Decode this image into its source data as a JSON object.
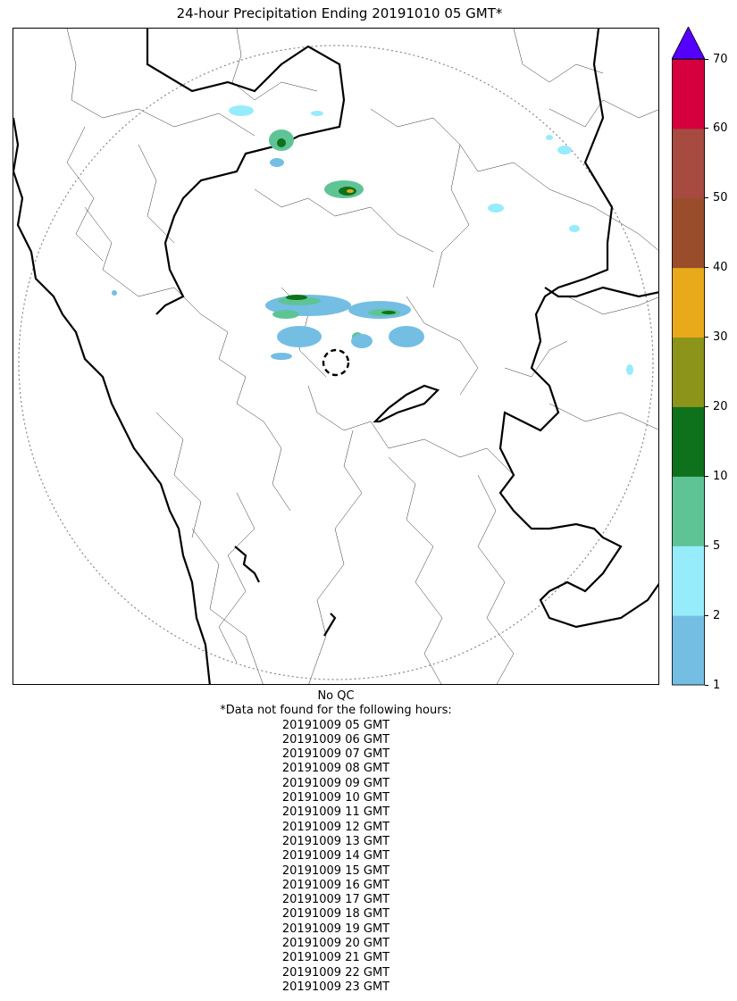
{
  "title": "24-hour Precipitation Ending 20191010 05 GMT*",
  "colorbar": {
    "ticks": [
      "1",
      "2",
      "5",
      "10",
      "20",
      "30",
      "40",
      "50",
      "60",
      "70"
    ],
    "bands": [
      {
        "from": "1",
        "to": "2",
        "color": "#74bee4"
      },
      {
        "from": "2",
        "to": "5",
        "color": "#97ecfc"
      },
      {
        "from": "5",
        "to": "10",
        "color": "#5ec496"
      },
      {
        "from": "10",
        "to": "20",
        "color": "#0e711c"
      },
      {
        "from": "20",
        "to": "30",
        "color": "#8c9419"
      },
      {
        "from": "30",
        "to": "40",
        "color": "#e8aa1a"
      },
      {
        "from": "40",
        "to": "50",
        "color": "#9a4d2a"
      },
      {
        "from": "50",
        "to": "60",
        "color": "#a74a40"
      },
      {
        "from": "60",
        "to": "70",
        "color": "#d6003f"
      }
    ],
    "extend_color": "#5500ff"
  },
  "notes": {
    "qc": "No QC",
    "missing_header": "*Data not found for the following hours:",
    "missing_hours": [
      "20191009 05 GMT",
      "20191009 06 GMT",
      "20191009 07 GMT",
      "20191009 08 GMT",
      "20191009 09 GMT",
      "20191009 10 GMT",
      "20191009 11 GMT",
      "20191009 12 GMT",
      "20191009 13 GMT",
      "20191009 14 GMT",
      "20191009 15 GMT",
      "20191009 16 GMT",
      "20191009 17 GMT",
      "20191009 18 GMT",
      "20191009 19 GMT",
      "20191009 20 GMT",
      "20191009 21 GMT",
      "20191009 22 GMT",
      "20191009 23 GMT"
    ]
  }
}
